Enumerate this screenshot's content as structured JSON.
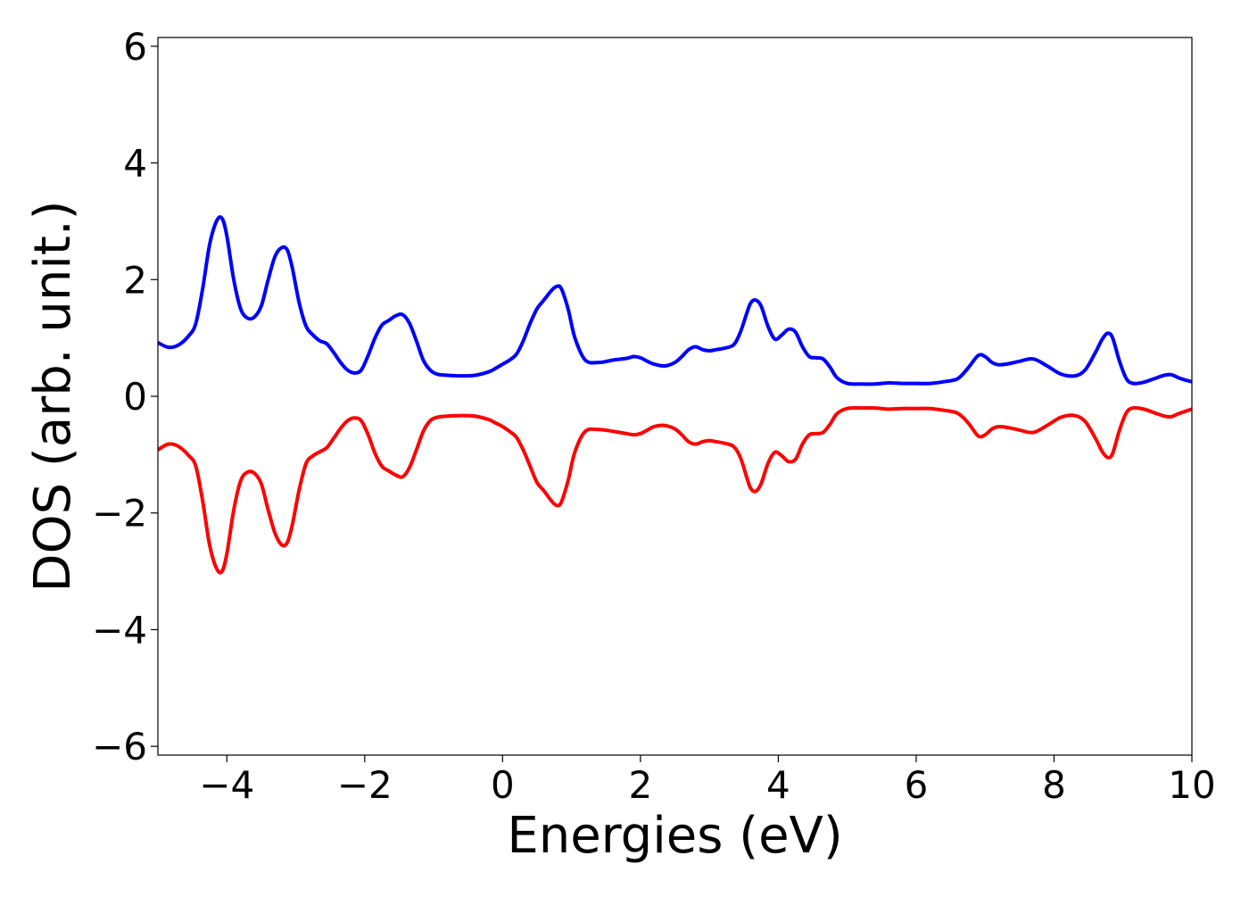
{
  "chart_data": {
    "type": "line",
    "title": "",
    "xlabel": "Energies (eV)",
    "ylabel": "DOS (arb. unit.)",
    "xlim": [
      -5,
      10
    ],
    "ylim": [
      -6.15,
      6.15
    ],
    "xticks": [
      -4,
      -2,
      0,
      2,
      4,
      6,
      8,
      10
    ],
    "xtick_labels": [
      "−4",
      "−2",
      "0",
      "2",
      "4",
      "6",
      "8",
      "10"
    ],
    "yticks": [
      -6,
      -4,
      -2,
      0,
      2,
      4,
      6
    ],
    "ytick_labels": [
      "−6",
      "−4",
      "−2",
      "0",
      "2",
      "4",
      "6"
    ],
    "grid": false,
    "legend": "none",
    "series": [
      {
        "color": "#0000ff",
        "x": [
          -5.0,
          -4.85,
          -4.7,
          -4.55,
          -4.45,
          -4.35,
          -4.25,
          -4.15,
          -4.07,
          -4.0,
          -3.9,
          -3.8,
          -3.7,
          -3.6,
          -3.5,
          -3.4,
          -3.3,
          -3.2,
          -3.12,
          -3.05,
          -2.95,
          -2.85,
          -2.75,
          -2.65,
          -2.55,
          -2.45,
          -2.35,
          -2.25,
          -2.15,
          -2.05,
          -1.95,
          -1.85,
          -1.75,
          -1.65,
          -1.55,
          -1.45,
          -1.35,
          -1.25,
          -1.15,
          -1.05,
          -0.95,
          -0.8,
          -0.6,
          -0.4,
          -0.2,
          -0.1,
          0.0,
          0.1,
          0.2,
          0.3,
          0.4,
          0.5,
          0.6,
          0.7,
          0.78,
          0.85,
          0.95,
          1.05,
          1.2,
          1.4,
          1.6,
          1.8,
          1.9,
          2.0,
          2.1,
          2.2,
          2.35,
          2.5,
          2.6,
          2.7,
          2.8,
          2.9,
          3.0,
          3.1,
          3.2,
          3.35,
          3.45,
          3.55,
          3.6,
          3.67,
          3.75,
          3.85,
          3.95,
          4.05,
          4.15,
          4.25,
          4.35,
          4.45,
          4.55,
          4.65,
          4.75,
          4.85,
          5.0,
          5.2,
          5.4,
          5.6,
          5.8,
          6.0,
          6.2,
          6.4,
          6.6,
          6.75,
          6.9,
          7.0,
          7.1,
          7.2,
          7.35,
          7.5,
          7.7,
          7.9,
          8.1,
          8.3,
          8.45,
          8.6,
          8.7,
          8.78,
          8.85,
          8.95,
          9.05,
          9.15,
          9.3,
          9.45,
          9.6,
          9.7,
          9.8,
          9.9,
          10.0
        ],
        "y": [
          0.92,
          0.84,
          0.88,
          1.04,
          1.25,
          1.85,
          2.6,
          3.0,
          3.05,
          2.75,
          2.0,
          1.5,
          1.34,
          1.36,
          1.55,
          2.0,
          2.4,
          2.55,
          2.5,
          2.2,
          1.6,
          1.2,
          1.05,
          0.95,
          0.9,
          0.75,
          0.58,
          0.45,
          0.4,
          0.45,
          0.7,
          1.0,
          1.22,
          1.3,
          1.38,
          1.4,
          1.25,
          0.95,
          0.62,
          0.45,
          0.38,
          0.36,
          0.35,
          0.36,
          0.42,
          0.48,
          0.55,
          0.62,
          0.72,
          0.95,
          1.25,
          1.5,
          1.65,
          1.8,
          1.88,
          1.85,
          1.5,
          1.0,
          0.62,
          0.58,
          0.62,
          0.65,
          0.68,
          0.66,
          0.6,
          0.55,
          0.52,
          0.58,
          0.68,
          0.8,
          0.85,
          0.8,
          0.78,
          0.8,
          0.82,
          0.88,
          1.1,
          1.45,
          1.6,
          1.65,
          1.55,
          1.2,
          0.98,
          1.05,
          1.15,
          1.1,
          0.85,
          0.68,
          0.66,
          0.64,
          0.5,
          0.32,
          0.22,
          0.21,
          0.21,
          0.23,
          0.22,
          0.22,
          0.22,
          0.25,
          0.3,
          0.48,
          0.7,
          0.68,
          0.58,
          0.54,
          0.56,
          0.6,
          0.64,
          0.52,
          0.38,
          0.35,
          0.45,
          0.75,
          0.98,
          1.08,
          1.0,
          0.6,
          0.3,
          0.22,
          0.24,
          0.3,
          0.36,
          0.37,
          0.32,
          0.28,
          0.25
        ]
      },
      {
        "color": "#ff0000",
        "x": [
          -5.0,
          -4.85,
          -4.7,
          -4.55,
          -4.45,
          -4.35,
          -4.25,
          -4.15,
          -4.07,
          -4.0,
          -3.9,
          -3.8,
          -3.7,
          -3.6,
          -3.5,
          -3.4,
          -3.3,
          -3.2,
          -3.12,
          -3.05,
          -2.95,
          -2.85,
          -2.75,
          -2.65,
          -2.55,
          -2.45,
          -2.35,
          -2.25,
          -2.15,
          -2.05,
          -1.95,
          -1.85,
          -1.75,
          -1.65,
          -1.55,
          -1.45,
          -1.35,
          -1.25,
          -1.15,
          -1.05,
          -0.95,
          -0.8,
          -0.6,
          -0.4,
          -0.2,
          -0.1,
          0.0,
          0.1,
          0.2,
          0.3,
          0.4,
          0.5,
          0.6,
          0.7,
          0.78,
          0.85,
          0.95,
          1.05,
          1.2,
          1.4,
          1.6,
          1.8,
          1.9,
          2.0,
          2.1,
          2.2,
          2.35,
          2.5,
          2.6,
          2.7,
          2.8,
          2.9,
          3.0,
          3.1,
          3.2,
          3.35,
          3.45,
          3.55,
          3.6,
          3.67,
          3.75,
          3.85,
          3.95,
          4.05,
          4.15,
          4.25,
          4.35,
          4.45,
          4.55,
          4.65,
          4.75,
          4.85,
          5.0,
          5.2,
          5.4,
          5.6,
          5.8,
          6.0,
          6.2,
          6.4,
          6.6,
          6.75,
          6.9,
          7.0,
          7.1,
          7.2,
          7.35,
          7.5,
          7.7,
          7.9,
          8.1,
          8.3,
          8.45,
          8.6,
          8.7,
          8.78,
          8.85,
          8.95,
          9.05,
          9.15,
          9.3,
          9.45,
          9.6,
          9.7,
          9.8,
          9.9,
          10.0
        ],
        "y": [
          -0.92,
          -0.82,
          -0.86,
          -1.02,
          -1.2,
          -1.8,
          -2.55,
          -2.95,
          -3.0,
          -2.7,
          -1.95,
          -1.45,
          -1.3,
          -1.32,
          -1.5,
          -1.95,
          -2.35,
          -2.55,
          -2.5,
          -2.2,
          -1.6,
          -1.15,
          -1.02,
          -0.95,
          -0.88,
          -0.72,
          -0.55,
          -0.42,
          -0.37,
          -0.42,
          -0.66,
          -0.98,
          -1.2,
          -1.28,
          -1.35,
          -1.38,
          -1.22,
          -0.92,
          -0.6,
          -0.42,
          -0.36,
          -0.34,
          -0.33,
          -0.34,
          -0.4,
          -0.46,
          -0.52,
          -0.6,
          -0.7,
          -0.92,
          -1.2,
          -1.48,
          -1.62,
          -1.78,
          -1.87,
          -1.82,
          -1.45,
          -0.95,
          -0.6,
          -0.57,
          -0.6,
          -0.64,
          -0.66,
          -0.64,
          -0.58,
          -0.52,
          -0.5,
          -0.56,
          -0.66,
          -0.78,
          -0.82,
          -0.78,
          -0.76,
          -0.78,
          -0.8,
          -0.86,
          -1.05,
          -1.42,
          -1.58,
          -1.63,
          -1.5,
          -1.15,
          -0.96,
          -1.02,
          -1.12,
          -1.08,
          -0.82,
          -0.66,
          -0.64,
          -0.62,
          -0.48,
          -0.3,
          -0.21,
          -0.2,
          -0.2,
          -0.22,
          -0.21,
          -0.21,
          -0.21,
          -0.24,
          -0.29,
          -0.45,
          -0.68,
          -0.66,
          -0.56,
          -0.52,
          -0.54,
          -0.58,
          -0.62,
          -0.5,
          -0.36,
          -0.33,
          -0.43,
          -0.72,
          -0.95,
          -1.05,
          -0.98,
          -0.58,
          -0.28,
          -0.2,
          -0.22,
          -0.28,
          -0.34,
          -0.35,
          -0.3,
          -0.26,
          -0.22
        ]
      }
    ]
  }
}
